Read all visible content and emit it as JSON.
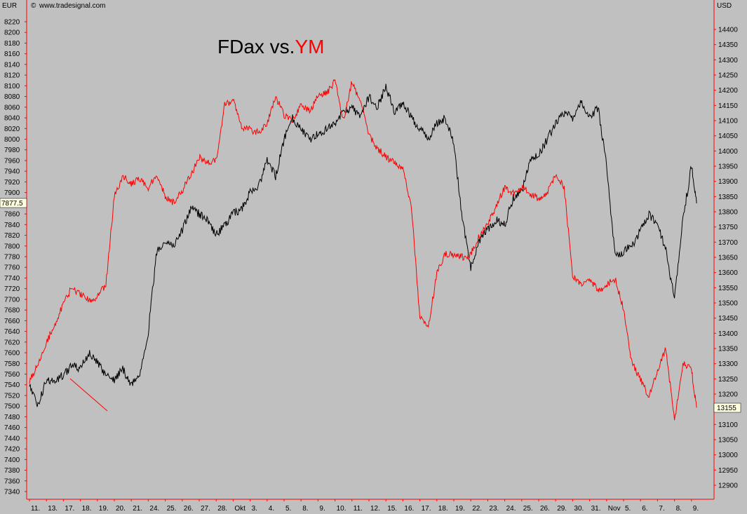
{
  "header": {
    "left_currency": "EUR",
    "right_currency": "USD",
    "source": "www.tradesignal.com",
    "copyright_symbol": "©"
  },
  "colors": {
    "background": "#c0c0c0",
    "fdax": "#000000",
    "ym": "#ff0000",
    "axis": "#ff0000",
    "price_tag": "#ffffe0"
  },
  "chart_data": {
    "type": "line",
    "title_parts": [
      "FDax vs.",
      "YM"
    ],
    "x_tick_labels": [
      "11.",
      "13.",
      "17.",
      "18.",
      "19.",
      "20.",
      "21.",
      "24.",
      "25.",
      "26.",
      "27.",
      "28.",
      "Okt",
      "3.",
      "4.",
      "5.",
      "8.",
      "9.",
      "10.",
      "11.",
      "12.",
      "15.",
      "16.",
      "17.",
      "18.",
      "19.",
      "22.",
      "23.",
      "24.",
      "25.",
      "26.",
      "29.",
      "30.",
      "31.",
      "Nov",
      "5.",
      "6.",
      "7.",
      "8.",
      "9."
    ],
    "y_left": {
      "min": 7340,
      "max": 8220,
      "step": 20,
      "unit": "EUR"
    },
    "y_right": {
      "min": 12900,
      "max": 14400,
      "step": 50,
      "unit": "USD"
    },
    "left_last_value": "7877.5",
    "right_last_value": "13155",
    "series": [
      {
        "name": "FDax",
        "axis": "left",
        "color": "#000000",
        "x": [
          0,
          0.5,
          1,
          1.5,
          2,
          2.5,
          3,
          3.5,
          4,
          4.5,
          5,
          5.5,
          6,
          6.5,
          7,
          7.5,
          8,
          8.5,
          9,
          9.5,
          10,
          10.5,
          11,
          11.5,
          12,
          12.5,
          13,
          13.5,
          14,
          14.5,
          15,
          15.5,
          16,
          16.5,
          17,
          17.5,
          18,
          18.5,
          19,
          19.5,
          20,
          20.5,
          21,
          21.5,
          22,
          22.5,
          23,
          23.5,
          24,
          24.5,
          25,
          25.5,
          26,
          26.5,
          27,
          27.5,
          28,
          28.5,
          29,
          29.5,
          30,
          30.5,
          31,
          31.5,
          32,
          32.5,
          33,
          33.5,
          34,
          34.5,
          35,
          35.5,
          36,
          36.5,
          37,
          37.5,
          38,
          38.5,
          39,
          39.3
        ],
        "values": [
          7540,
          7500,
          7550,
          7545,
          7560,
          7575,
          7570,
          7600,
          7580,
          7560,
          7550,
          7570,
          7540,
          7560,
          7640,
          7790,
          7810,
          7800,
          7830,
          7870,
          7860,
          7850,
          7820,
          7840,
          7860,
          7870,
          7900,
          7910,
          7960,
          7930,
          8000,
          8040,
          8020,
          8000,
          8010,
          8020,
          8030,
          8050,
          8060,
          8040,
          8080,
          8060,
          8100,
          8050,
          8070,
          8040,
          8020,
          8000,
          8030,
          8040,
          7990,
          7850,
          7760,
          7810,
          7830,
          7850,
          7840,
          7890,
          7900,
          7960,
          7970,
          8000,
          8030,
          8050,
          8040,
          8070,
          8040,
          8060,
          7950,
          7780,
          7790,
          7800,
          7830,
          7860,
          7840,
          7790,
          7700,
          7850,
          7950,
          7880
        ]
      },
      {
        "name": "YM",
        "axis": "right",
        "color": "#ff0000",
        "x": [
          0,
          0.5,
          1,
          1.5,
          2,
          2.5,
          3,
          3.5,
          4,
          4.5,
          5,
          5.5,
          6,
          6.5,
          7,
          7.5,
          8,
          8.5,
          9,
          9.5,
          10,
          10.5,
          11,
          11.5,
          12,
          12.5,
          13,
          13.5,
          14,
          14.5,
          15,
          15.5,
          16,
          16.5,
          17,
          17.5,
          18,
          18.5,
          19,
          19.5,
          20,
          20.5,
          21,
          21.5,
          22,
          22.5,
          23,
          23.5,
          24,
          24.5,
          25,
          25.5,
          26,
          26.5,
          27,
          27.5,
          28,
          28.5,
          29,
          29.5,
          30,
          30.5,
          31,
          31.5,
          32,
          32.5,
          33,
          33.5,
          34,
          34.5,
          35,
          35.5,
          36,
          36.5,
          37,
          37.5,
          38,
          38.5,
          39,
          39.3
        ],
        "values": [
          13240,
          13300,
          13370,
          13430,
          13500,
          13550,
          13530,
          13510,
          13520,
          13560,
          13850,
          13920,
          13890,
          13910,
          13880,
          13920,
          13850,
          13830,
          13870,
          13920,
          13980,
          13960,
          13970,
          14150,
          14170,
          14080,
          14070,
          14060,
          14090,
          14180,
          14120,
          14100,
          14150,
          14130,
          14180,
          14190,
          14230,
          14100,
          14230,
          14160,
          14050,
          14010,
          13980,
          13960,
          13940,
          13820,
          13450,
          13420,
          13600,
          13660,
          13660,
          13650,
          13660,
          13720,
          13760,
          13820,
          13880,
          13860,
          13880,
          13860,
          13840,
          13860,
          13920,
          13880,
          13590,
          13560,
          13580,
          13540,
          13560,
          13580,
          13480,
          13300,
          13250,
          13190,
          13280,
          13350,
          13110,
          13300,
          13280,
          13155
        ]
      }
    ],
    "annotation": {
      "type": "trendline",
      "color": "#ff0000"
    }
  }
}
